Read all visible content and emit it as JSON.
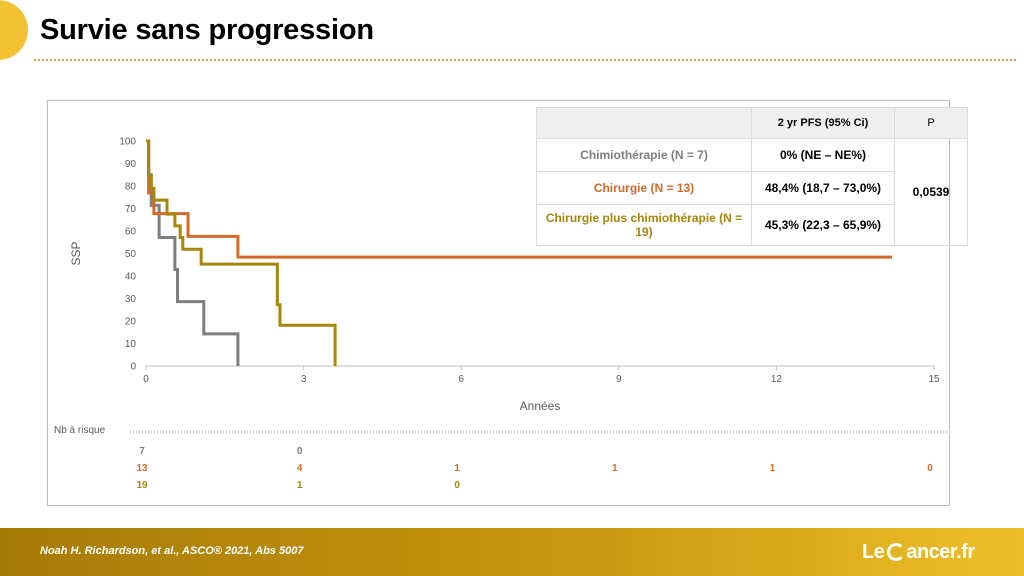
{
  "slide": {
    "title": "Survie sans progression",
    "citation": "Noah H. Richardson, et al.,  ASCO® 2021, Abs 5007",
    "logo_prefix": "Le",
    "logo_suffix": "ancer.fr"
  },
  "chart_data": {
    "type": "line",
    "step": true,
    "xlabel": "Années",
    "ylabel": "SSP",
    "xlim": [
      0,
      15
    ],
    "ylim": [
      0,
      100
    ],
    "xticks": [
      0,
      3,
      6,
      9,
      12,
      15
    ],
    "yticks": [
      0,
      10,
      20,
      30,
      40,
      50,
      60,
      70,
      80,
      90,
      100
    ],
    "grid": false,
    "legend": "table top-right",
    "series": [
      {
        "name": "Chimiothérapie (N = 7)",
        "color": "#7f7f7f",
        "x": [
          0,
          0.05,
          0.1,
          0.25,
          0.45,
          0.55,
          0.6,
          1.1,
          1.75,
          1.75
        ],
        "y": [
          100,
          85,
          71.4,
          57.1,
          57.1,
          42.9,
          28.6,
          14.3,
          14.3,
          0
        ]
      },
      {
        "name": "Chirurgie (N = 13)",
        "color": "#d4692a",
        "x": [
          0,
          0.05,
          0.15,
          0.8,
          1.75,
          14.2
        ],
        "y": [
          100,
          76.9,
          67.7,
          57.6,
          48.4,
          48.4
        ]
      },
      {
        "name": "Chirurgie plus chimiothérapie (N = 19)",
        "color": "#a8850b",
        "x": [
          0,
          0.05,
          0.1,
          0.15,
          0.4,
          0.55,
          0.65,
          0.7,
          1.05,
          2.4,
          2.5,
          2.55,
          3.6,
          3.6
        ],
        "y": [
          100,
          84.2,
          78.9,
          73.7,
          67.5,
          62.3,
          57.1,
          51.9,
          45.3,
          45.3,
          27.2,
          18.1,
          18.1,
          0
        ]
      }
    ],
    "at_risk": {
      "label": "Nb à risque",
      "rows": [
        {
          "color": "#7f7f7f",
          "cells": [
            {
              "x": 0,
              "n": "7"
            },
            {
              "x": 3,
              "n": "0"
            }
          ]
        },
        {
          "color": "#d4692a",
          "cells": [
            {
              "x": 0,
              "n": "13"
            },
            {
              "x": 3,
              "n": "4"
            },
            {
              "x": 6,
              "n": "1"
            },
            {
              "x": 9,
              "n": "1"
            },
            {
              "x": 12,
              "n": "1"
            },
            {
              "x": 15,
              "n": "0"
            }
          ]
        },
        {
          "color": "#a8850b",
          "cells": [
            {
              "x": 0,
              "n": "19"
            },
            {
              "x": 3,
              "n": "1"
            },
            {
              "x": 6,
              "n": "0"
            }
          ]
        }
      ]
    }
  },
  "table": {
    "header_pfs": "2 yr PFS (95% Ci)",
    "header_p": "P",
    "rows": [
      {
        "label": "Chimiothérapie (N = 7)",
        "pfs": "0% (NE – NE%)",
        "color": "#7f7f7f"
      },
      {
        "label": "Chirurgie (N = 13)",
        "pfs": "48,4% (18,7 – 73,0%)",
        "color": "#d4692a"
      },
      {
        "label": "Chirurgie plus chimiothérapie (N = 19)",
        "pfs": "45,3% (22,3 – 65,9%)",
        "color": "#a8850b"
      }
    ],
    "p_value": "0,0539"
  }
}
